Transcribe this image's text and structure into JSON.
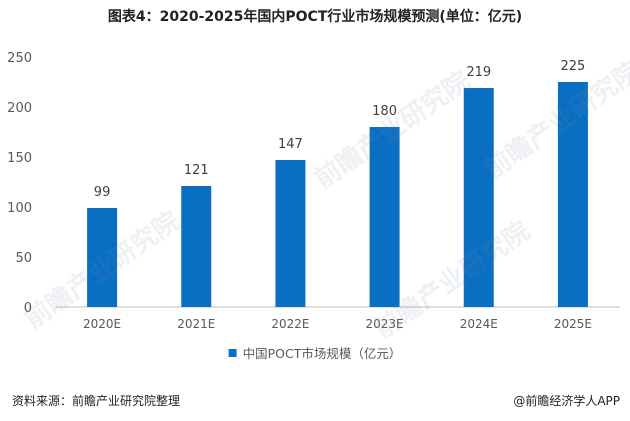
{
  "title": "图表4：2020-2025年国内POCT行业市场规模预测(单位：亿元)",
  "source": "资料来源：前瞻产业研究院整理",
  "brand": "@前瞻经济学人APP",
  "watermark": "前瞻产业研究院",
  "colors": {
    "bar": "#0a6fc2",
    "axis": "#bfbfbf",
    "text": "#595959"
  },
  "chart_data": {
    "type": "bar",
    "categories": [
      "2020E",
      "2021E",
      "2022E",
      "2023E",
      "2024E",
      "2025E"
    ],
    "series": [
      {
        "name": "中国POCT市场规模（亿元）",
        "values": [
          99,
          121,
          147,
          180,
          219,
          225
        ]
      }
    ],
    "ylim": [
      0,
      250
    ],
    "yticks": [
      0,
      50,
      100,
      150,
      200,
      250
    ],
    "grid": false,
    "legend_position": "bottom-center"
  }
}
